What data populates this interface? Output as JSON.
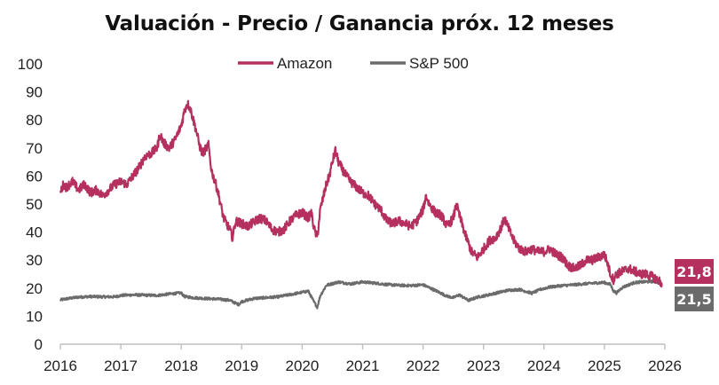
{
  "chart_data": {
    "type": "line",
    "title": "Valuación - Precio / Ganancia próx. 12 meses",
    "xlabel": "",
    "ylabel": "",
    "xlim": [
      2016,
      2026
    ],
    "ylim": [
      0,
      100
    ],
    "y_ticks": [
      0,
      10,
      20,
      30,
      40,
      50,
      60,
      70,
      80,
      90,
      100
    ],
    "x_ticks": [
      2016,
      2017,
      2018,
      2019,
      2020,
      2021,
      2022,
      2023,
      2024,
      2025,
      2026
    ],
    "x_tick_labels": [
      "2016",
      "2017",
      "2018",
      "2019",
      "2020",
      "2021",
      "2022",
      "2023",
      "2024",
      "2025",
      "2026"
    ],
    "grid": false,
    "legend": "top-center",
    "series": [
      {
        "name": "Amazon",
        "color": "#b5305f",
        "end_label": "21,8",
        "points": [
          [
            2016.0,
            54
          ],
          [
            2016.05,
            57
          ],
          [
            2016.1,
            56
          ],
          [
            2016.2,
            58
          ],
          [
            2016.3,
            55
          ],
          [
            2016.4,
            57
          ],
          [
            2016.5,
            54
          ],
          [
            2016.6,
            55
          ],
          [
            2016.7,
            53
          ],
          [
            2016.8,
            55
          ],
          [
            2016.9,
            57
          ],
          [
            2017.0,
            58
          ],
          [
            2017.1,
            57
          ],
          [
            2017.2,
            60
          ],
          [
            2017.3,
            63
          ],
          [
            2017.4,
            67
          ],
          [
            2017.5,
            68
          ],
          [
            2017.6,
            70
          ],
          [
            2017.65,
            75
          ],
          [
            2017.7,
            72
          ],
          [
            2017.8,
            70
          ],
          [
            2017.9,
            73
          ],
          [
            2018.0,
            78
          ],
          [
            2018.05,
            83
          ],
          [
            2018.1,
            86
          ],
          [
            2018.15,
            84
          ],
          [
            2018.2,
            80
          ],
          [
            2018.25,
            76
          ],
          [
            2018.3,
            71
          ],
          [
            2018.35,
            68
          ],
          [
            2018.45,
            71
          ],
          [
            2018.5,
            62
          ],
          [
            2018.6,
            55
          ],
          [
            2018.7,
            45
          ],
          [
            2018.8,
            41
          ],
          [
            2018.85,
            38
          ],
          [
            2018.9,
            44
          ],
          [
            2019.0,
            43
          ],
          [
            2019.1,
            42
          ],
          [
            2019.3,
            45
          ],
          [
            2019.4,
            44
          ],
          [
            2019.5,
            41
          ],
          [
            2019.6,
            40
          ],
          [
            2019.7,
            41
          ],
          [
            2019.8,
            44
          ],
          [
            2019.9,
            46
          ],
          [
            2020.0,
            47
          ],
          [
            2020.1,
            45
          ],
          [
            2020.15,
            47
          ],
          [
            2020.2,
            41
          ],
          [
            2020.25,
            38
          ],
          [
            2020.3,
            48
          ],
          [
            2020.4,
            57
          ],
          [
            2020.45,
            60
          ],
          [
            2020.5,
            65
          ],
          [
            2020.55,
            69
          ],
          [
            2020.6,
            65
          ],
          [
            2020.7,
            61
          ],
          [
            2020.8,
            58
          ],
          [
            2020.9,
            56
          ],
          [
            2021.0,
            54
          ],
          [
            2021.1,
            53
          ],
          [
            2021.2,
            50
          ],
          [
            2021.3,
            48
          ],
          [
            2021.4,
            44
          ],
          [
            2021.5,
            43
          ],
          [
            2021.6,
            44
          ],
          [
            2021.7,
            43
          ],
          [
            2021.8,
            42
          ],
          [
            2021.9,
            44
          ],
          [
            2022.0,
            48
          ],
          [
            2022.05,
            53
          ],
          [
            2022.1,
            50
          ],
          [
            2022.2,
            47
          ],
          [
            2022.3,
            46
          ],
          [
            2022.4,
            42
          ],
          [
            2022.5,
            45
          ],
          [
            2022.55,
            50
          ],
          [
            2022.6,
            46
          ],
          [
            2022.7,
            39
          ],
          [
            2022.8,
            33
          ],
          [
            2022.9,
            31
          ],
          [
            2023.0,
            34
          ],
          [
            2023.1,
            37
          ],
          [
            2023.2,
            38
          ],
          [
            2023.3,
            42
          ],
          [
            2023.35,
            45
          ],
          [
            2023.4,
            42
          ],
          [
            2023.5,
            37
          ],
          [
            2023.6,
            34
          ],
          [
            2023.7,
            33
          ],
          [
            2023.8,
            34
          ],
          [
            2023.9,
            33
          ],
          [
            2024.0,
            33
          ],
          [
            2024.1,
            34
          ],
          [
            2024.2,
            32
          ],
          [
            2024.3,
            31
          ],
          [
            2024.4,
            28
          ],
          [
            2024.5,
            27
          ],
          [
            2024.6,
            28
          ],
          [
            2024.7,
            30
          ],
          [
            2024.8,
            30
          ],
          [
            2024.9,
            31
          ],
          [
            2025.0,
            32
          ],
          [
            2025.05,
            29
          ],
          [
            2025.1,
            25
          ],
          [
            2025.15,
            23
          ],
          [
            2025.2,
            25
          ],
          [
            2025.3,
            26
          ],
          [
            2025.4,
            27
          ],
          [
            2025.5,
            26
          ],
          [
            2025.6,
            25
          ],
          [
            2025.7,
            25
          ],
          [
            2025.8,
            24
          ],
          [
            2025.88,
            23
          ],
          [
            2025.95,
            21.8
          ]
        ]
      },
      {
        "name": "S&P 500",
        "color": "#6b6b6b",
        "end_label": "21,5",
        "points": [
          [
            2016.0,
            15.8
          ],
          [
            2016.1,
            16.2
          ],
          [
            2016.3,
            16.8
          ],
          [
            2016.5,
            17.0
          ],
          [
            2016.7,
            16.9
          ],
          [
            2016.9,
            16.9
          ],
          [
            2017.0,
            17.4
          ],
          [
            2017.2,
            17.6
          ],
          [
            2017.4,
            17.5
          ],
          [
            2017.6,
            17.4
          ],
          [
            2017.8,
            17.9
          ],
          [
            2018.0,
            18.3
          ],
          [
            2018.05,
            17.0
          ],
          [
            2018.2,
            16.6
          ],
          [
            2018.4,
            16.3
          ],
          [
            2018.6,
            16.1
          ],
          [
            2018.8,
            15.7
          ],
          [
            2018.9,
            14.6
          ],
          [
            2018.95,
            14.2
          ],
          [
            2019.0,
            15.2
          ],
          [
            2019.2,
            16.3
          ],
          [
            2019.4,
            16.6
          ],
          [
            2019.6,
            16.9
          ],
          [
            2019.8,
            17.7
          ],
          [
            2020.0,
            18.5
          ],
          [
            2020.1,
            19.0
          ],
          [
            2020.2,
            14.9
          ],
          [
            2020.25,
            13.2
          ],
          [
            2020.3,
            17.3
          ],
          [
            2020.4,
            21.0
          ],
          [
            2020.6,
            22.2
          ],
          [
            2020.8,
            21.5
          ],
          [
            2021.0,
            22.2
          ],
          [
            2021.2,
            21.8
          ],
          [
            2021.4,
            21.3
          ],
          [
            2021.6,
            21.0
          ],
          [
            2021.8,
            20.9
          ],
          [
            2022.0,
            21.2
          ],
          [
            2022.2,
            19.2
          ],
          [
            2022.4,
            17.1
          ],
          [
            2022.5,
            16.6
          ],
          [
            2022.6,
            17.6
          ],
          [
            2022.75,
            15.6
          ],
          [
            2022.9,
            16.8
          ],
          [
            2023.0,
            17.2
          ],
          [
            2023.2,
            18.2
          ],
          [
            2023.4,
            19.2
          ],
          [
            2023.6,
            19.5
          ],
          [
            2023.8,
            18.2
          ],
          [
            2023.95,
            19.6
          ],
          [
            2024.1,
            20.4
          ],
          [
            2024.3,
            20.9
          ],
          [
            2024.5,
            21.2
          ],
          [
            2024.7,
            21.6
          ],
          [
            2024.9,
            21.9
          ],
          [
            2025.0,
            22.0
          ],
          [
            2025.1,
            21.3
          ],
          [
            2025.15,
            19.0
          ],
          [
            2025.2,
            18.3
          ],
          [
            2025.3,
            20.3
          ],
          [
            2025.5,
            22.0
          ],
          [
            2025.7,
            22.3
          ],
          [
            2025.8,
            22.4
          ],
          [
            2025.9,
            22.0
          ],
          [
            2025.95,
            21.5
          ]
        ]
      }
    ]
  }
}
